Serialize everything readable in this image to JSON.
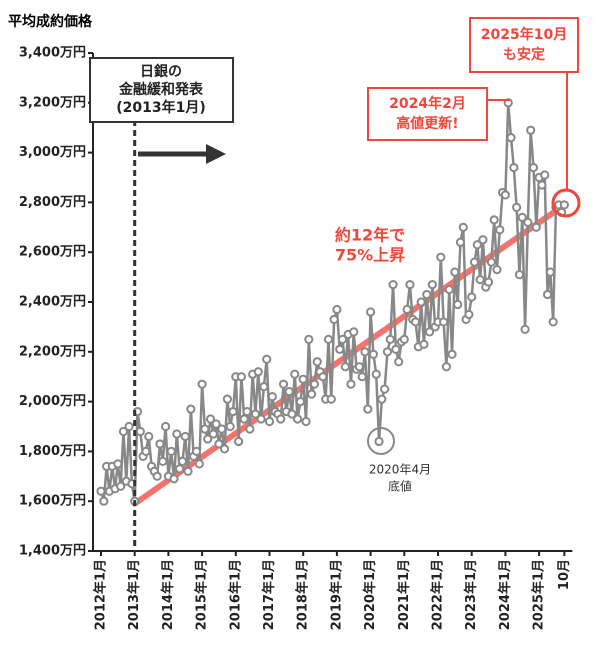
{
  "chart_data": {
    "type": "line",
    "y_axis_title": "平均成約価格",
    "categories": [
      "2012年1月",
      null,
      null,
      null,
      null,
      null,
      null,
      null,
      null,
      null,
      null,
      null,
      "2013年1月",
      null,
      null,
      null,
      null,
      null,
      null,
      null,
      null,
      null,
      null,
      null,
      "2014年1月",
      null,
      null,
      null,
      null,
      null,
      null,
      null,
      null,
      null,
      null,
      null,
      "2015年1月",
      null,
      null,
      null,
      null,
      null,
      null,
      null,
      null,
      null,
      null,
      null,
      "2016年1月",
      null,
      null,
      null,
      null,
      null,
      null,
      null,
      null,
      null,
      null,
      null,
      "2017年1月",
      null,
      null,
      null,
      null,
      null,
      null,
      null,
      null,
      null,
      null,
      null,
      "2018年1月",
      null,
      null,
      null,
      null,
      null,
      null,
      null,
      null,
      null,
      null,
      null,
      "2019年1月",
      null,
      null,
      null,
      null,
      null,
      null,
      null,
      null,
      null,
      null,
      null,
      "2020年1月",
      null,
      null,
      null,
      null,
      null,
      null,
      null,
      null,
      null,
      null,
      null,
      "2021年1月",
      null,
      null,
      null,
      null,
      null,
      null,
      null,
      null,
      null,
      null,
      null,
      "2022年1月",
      null,
      null,
      null,
      null,
      null,
      null,
      null,
      null,
      null,
      null,
      null,
      "2023年1月",
      null,
      null,
      null,
      null,
      null,
      null,
      null,
      null,
      null,
      null,
      null,
      "2024年1月",
      null,
      null,
      null,
      null,
      null,
      null,
      null,
      null,
      null,
      null,
      null,
      "2025年1月",
      null,
      null,
      null,
      null,
      null,
      null,
      null,
      null,
      "10月"
    ],
    "values": [
      1640,
      1600,
      1740,
      1640,
      1740,
      1650,
      1750,
      1660,
      1880,
      1680,
      1900,
      1670,
      1600,
      1960,
      1880,
      1780,
      1800,
      1860,
      1740,
      1720,
      1700,
      1830,
      1760,
      1900,
      1700,
      1800,
      1690,
      1870,
      1730,
      1760,
      1860,
      1720,
      1970,
      1780,
      1800,
      1750,
      2070,
      1890,
      1850,
      1930,
      1870,
      1910,
      1830,
      1890,
      1810,
      2010,
      1900,
      1960,
      2100,
      1840,
      2100,
      1930,
      1960,
      1890,
      2110,
      1950,
      2120,
      1930,
      2060,
      2170,
      1920,
      2020,
      1960,
      1950,
      1930,
      2070,
      1960,
      2040,
      1950,
      2110,
      1930,
      2000,
      2090,
      1920,
      2250,
      2030,
      2070,
      2160,
      2120,
      2100,
      2010,
      2250,
      2010,
      2330,
      2370,
      2210,
      2250,
      2140,
      2270,
      2070,
      2280,
      2130,
      2140,
      2100,
      2200,
      1970,
      2360,
      2190,
      2110,
      1840,
      2010,
      2050,
      2200,
      2250,
      2470,
      2210,
      2160,
      2240,
      2250,
      2370,
      2470,
      2330,
      2320,
      2220,
      2400,
      2230,
      2430,
      2280,
      2470,
      2300,
      2320,
      2580,
      2320,
      2140,
      2450,
      2190,
      2520,
      2390,
      2640,
      2700,
      2330,
      2350,
      2420,
      2560,
      2630,
      2490,
      2650,
      2460,
      2480,
      2560,
      2730,
      2530,
      2690,
      2840,
      2830,
      3200,
      3060,
      2940,
      2780,
      2510,
      2740,
      2290,
      2720,
      3090,
      2940,
      2700,
      2900,
      2870,
      2910,
      2430,
      2520,
      2320,
      2780,
      2790,
      2760,
      2790
    ],
    "color": "#888888",
    "trend_line": {
      "start": 1590,
      "end": 2790,
      "color": "#f0463c"
    },
    "ylim": [
      1400,
      3400
    ],
    "yticks": [
      {
        "value": 1400,
        "label": "1,400万円"
      },
      {
        "value": 1600,
        "label": "1,600万円"
      },
      {
        "value": 1800,
        "label": "1,800万円"
      },
      {
        "value": 2000,
        "label": "2,000万円"
      },
      {
        "value": 2200,
        "label": "2,200万円"
      },
      {
        "value": 2400,
        "label": "2,400万円"
      },
      {
        "value": 2600,
        "label": "2,600万円"
      },
      {
        "value": 2800,
        "label": "2,800万円"
      },
      {
        "value": 3000,
        "label": "3,000万円"
      },
      {
        "value": 3200,
        "label": "3,200万円"
      },
      {
        "value": 3400,
        "label": "3,400万円"
      }
    ],
    "annotations": {
      "event": [
        "日銀の",
        "金融緩和発表",
        "(2013年1月)"
      ],
      "peak": [
        "2024年2月",
        "高値更新!"
      ],
      "latest": [
        "2025年10月",
        "も安定"
      ],
      "growth": [
        "約12年で",
        "75%上昇"
      ],
      "bottom": [
        "2020年4月",
        "底値"
      ]
    }
  }
}
